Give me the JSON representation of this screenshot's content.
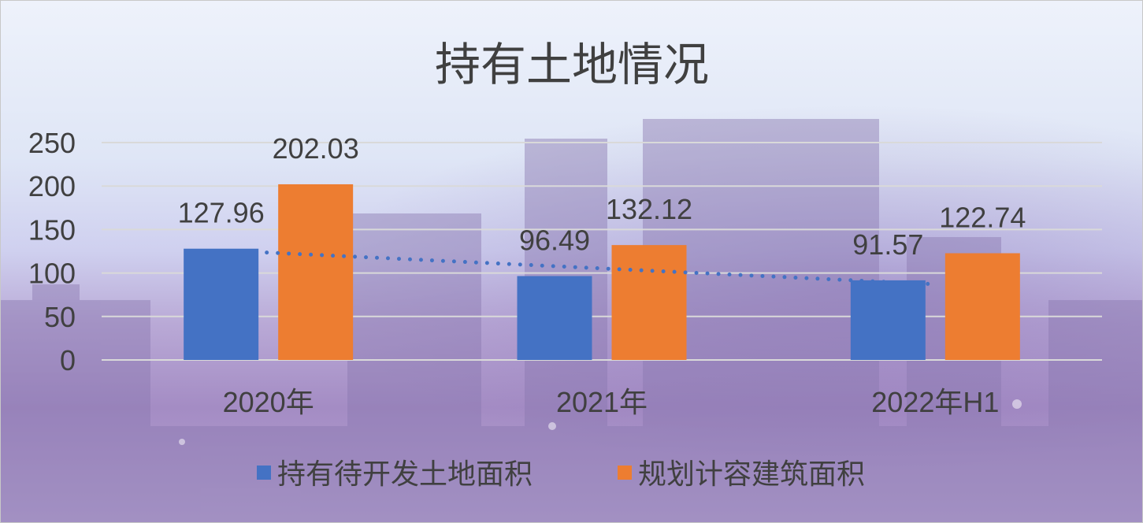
{
  "chart_data": {
    "type": "bar",
    "title": "持有土地情况",
    "categories": [
      "2020年",
      "2021年",
      "2022年H1"
    ],
    "series": [
      {
        "name": "持有待开发土地面积",
        "values": [
          127.96,
          96.49,
          91.57
        ],
        "color": "#4472C4"
      },
      {
        "name": "规划计容建筑面积",
        "values": [
          202.03,
          132.12,
          122.74
        ],
        "color": "#ED7D31"
      }
    ],
    "trendline": {
      "series": "持有待开发土地面积",
      "type": "linear",
      "style": "dotted",
      "color": "#4472C4"
    },
    "ylim": [
      0,
      250
    ],
    "yticks": [
      0,
      50,
      100,
      150,
      200,
      250
    ],
    "grid": true,
    "legend": "bottom"
  }
}
